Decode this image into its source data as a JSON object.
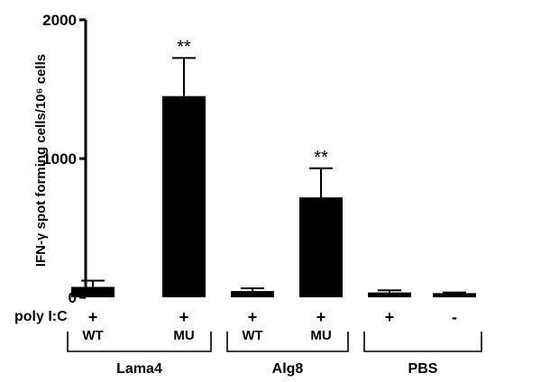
{
  "chart_data": {
    "type": "bar",
    "ylabel": "IFN-γ spot forming cells/10⁶ cells",
    "ylim": [
      0,
      2000
    ],
    "yticks": [
      "0",
      "1000",
      "2000"
    ],
    "categories": [
      "Lama4 WT",
      "Lama4 MU",
      "Alg8 WT",
      "Alg8 MU",
      "PBS +",
      "PBS -"
    ],
    "values": [
      75,
      1450,
      45,
      720,
      35,
      30
    ],
    "errors": [
      45,
      275,
      20,
      210,
      15,
      5
    ],
    "annotations": [
      "",
      "**",
      "",
      "**",
      "",
      ""
    ],
    "row_label": "poly I:C",
    "polyIC": [
      "+",
      "+",
      "+",
      "+",
      "+",
      "-"
    ],
    "sublabels": [
      "WT",
      "MU",
      "WT",
      "MU",
      "",
      ""
    ],
    "groups": [
      {
        "name": "Lama4",
        "bars": [
          0,
          1
        ]
      },
      {
        "name": "Alg8",
        "bars": [
          2,
          3
        ]
      },
      {
        "name": "PBS",
        "bars": [
          4,
          5
        ]
      }
    ],
    "bar_color": "#000000",
    "grid": false,
    "legend": "none"
  }
}
